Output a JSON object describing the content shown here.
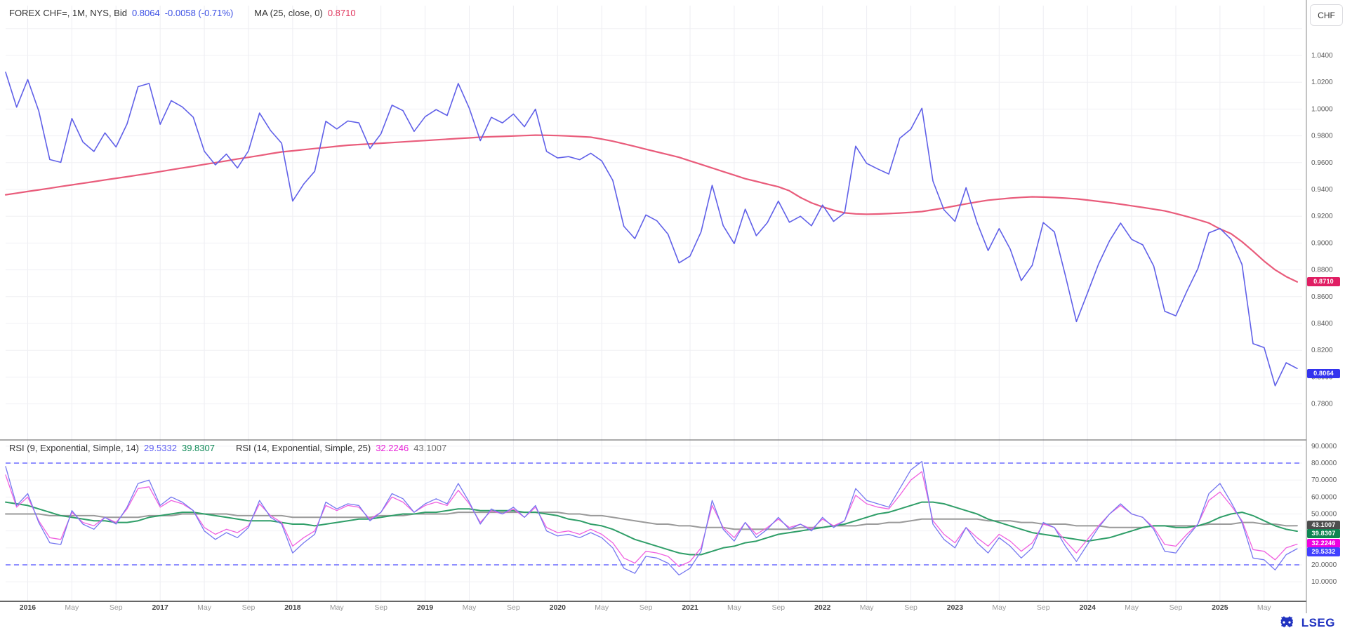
{
  "header": {
    "instrument": "FOREX CHF=, 1M, NYS, Bid",
    "last": "0.8064",
    "change": "-0.0058 (-0.71%)",
    "ma_label": "MA (25, close, 0)",
    "ma_value": "0.8710"
  },
  "axis_button": "CHF",
  "rsi_legend": {
    "label1": "RSI (9, Exponential, Simple, 14)",
    "value1a": "29.5332",
    "value1b": "39.8307",
    "label2": "RSI (14, Exponential, Simple, 25)",
    "value2a": "32.2246",
    "value2b": "43.1007"
  },
  "badges": {
    "price_ma": "0.8710",
    "price_last": "0.8064",
    "rsi_gray": "43.1007",
    "rsi_green": "39.8307",
    "rsi_magenta": "32.2246",
    "rsi_blue": "29.5332"
  },
  "logo_text": "LSEG",
  "chart_data": [
    {
      "type": "line",
      "panel": "price",
      "start_month": "2015-11",
      "freq": "monthly",
      "ylim": [
        0.77,
        1.06
      ],
      "grid": true,
      "y_tick_labels": [
        "1.0400",
        "1.0200",
        "1.0000",
        "0.9800",
        "0.9600",
        "0.9400",
        "0.9200",
        "0.9000",
        "0.8800",
        "0.8600",
        "0.8400",
        "0.8200",
        "0.8000",
        "0.7800"
      ],
      "x_tick_labels": [
        "2016",
        "May",
        "Sep",
        "2017",
        "May",
        "Sep",
        "2018",
        "May",
        "Sep",
        "2019",
        "May",
        "Sep",
        "2020",
        "May",
        "Sep",
        "2021",
        "May",
        "Sep",
        "2022",
        "May",
        "Sep",
        "2023",
        "May",
        "Sep",
        "2024",
        "May",
        "Sep",
        "2025",
        "May"
      ],
      "series": [
        {
          "name": "bid",
          "color": "#6060e8",
          "values": [
            1.0275,
            1.0014,
            1.022,
            0.9986,
            0.9623,
            0.9602,
            0.993,
            0.9754,
            0.9683,
            0.9822,
            0.9717,
            0.9889,
            1.0167,
            1.0191,
            0.9886,
            1.0063,
            1.0016,
            0.9939,
            0.9685,
            0.9583,
            0.9664,
            0.956,
            0.9688,
            0.997,
            0.984,
            0.9745,
            0.9313,
            0.944,
            0.9535,
            0.9909,
            0.9851,
            0.9911,
            0.9897,
            0.9706,
            0.9815,
            1.0029,
            0.9988,
            0.9833,
            0.9943,
            0.9996,
            0.9952,
            1.0191,
            1.0006,
            0.9764,
            0.9938,
            0.9897,
            0.9963,
            0.9868,
            0.9999,
            0.9684,
            0.9635,
            0.9645,
            0.9622,
            0.967,
            0.9613,
            0.9468,
            0.9125,
            0.9033,
            0.921,
            0.9166,
            0.9066,
            0.8852,
            0.8903,
            0.9084,
            0.9431,
            0.913,
            0.8996,
            0.9253,
            0.9055,
            0.9152,
            0.9313,
            0.9155,
            0.92,
            0.9129,
            0.9284,
            0.9162,
            0.9226,
            0.9723,
            0.9594,
            0.9553,
            0.9515,
            0.9782,
            0.985,
            1.0006,
            0.9463,
            0.9248,
            0.9162,
            0.9413,
            0.9152,
            0.8944,
            0.9108,
            0.8955,
            0.872,
            0.8834,
            0.9153,
            0.9083,
            0.8757,
            0.8414,
            0.8626,
            0.8843,
            0.9017,
            0.9149,
            0.9027,
            0.8987,
            0.8829,
            0.8491,
            0.8457,
            0.864,
            0.8809,
            0.9076,
            0.9109,
            0.9028,
            0.884,
            0.825,
            0.822,
            0.7935,
            0.8107,
            0.8064
          ]
        },
        {
          "name": "ma25",
          "color": "#e95c7b",
          "values": [
            0.936,
            0.9372,
            0.9385,
            0.9397,
            0.9409,
            0.9422,
            0.9434,
            0.9446,
            0.9458,
            0.9471,
            0.9483,
            0.9495,
            0.9508,
            0.952,
            0.9533,
            0.9547,
            0.956,
            0.9573,
            0.9587,
            0.96,
            0.9613,
            0.9627,
            0.964,
            0.9653,
            0.9667,
            0.968,
            0.9688,
            0.9697,
            0.9705,
            0.9713,
            0.9722,
            0.973,
            0.9735,
            0.974,
            0.9745,
            0.975,
            0.9755,
            0.976,
            0.9765,
            0.977,
            0.9775,
            0.978,
            0.9785,
            0.979,
            0.9793,
            0.9796,
            0.9799,
            0.9802,
            0.9805,
            0.9804,
            0.9802,
            0.9799,
            0.9795,
            0.979,
            0.9776,
            0.976,
            0.9741,
            0.9721,
            0.97,
            0.968,
            0.966,
            0.964,
            0.9613,
            0.9587,
            0.956,
            0.9533,
            0.9507,
            0.948,
            0.946,
            0.944,
            0.942,
            0.939,
            0.934,
            0.93,
            0.927,
            0.9245,
            0.9225,
            0.9218,
            0.9215,
            0.9217,
            0.922,
            0.9224,
            0.9229,
            0.9235,
            0.9248,
            0.9262,
            0.9277,
            0.9292,
            0.9307,
            0.932,
            0.9328,
            0.9335,
            0.9341,
            0.9345,
            0.9343,
            0.934,
            0.9335,
            0.933,
            0.9321,
            0.9311,
            0.9301,
            0.929,
            0.9278,
            0.9266,
            0.9253,
            0.924,
            0.922,
            0.9198,
            0.9175,
            0.915,
            0.9105,
            0.907,
            0.901,
            0.894,
            0.8865,
            0.88,
            0.875,
            0.871
          ]
        }
      ]
    },
    {
      "type": "line",
      "panel": "rsi",
      "start_month": "2015-11",
      "freq": "monthly",
      "ylim": [
        5,
        95
      ],
      "grid": true,
      "dashed_levels": [
        80,
        20
      ],
      "y_tick_labels": [
        "90.0000",
        "80.0000",
        "70.0000",
        "60.0000",
        "50.0000",
        "40.0000",
        "30.0000",
        "20.0000",
        "10.0000"
      ],
      "series": [
        {
          "name": "rsi14_ma25",
          "color": "#9a9a9a",
          "values": [
            50,
            50,
            50,
            50,
            49,
            49,
            49,
            49,
            49,
            48,
            48,
            48,
            48,
            49,
            49,
            49,
            50,
            50,
            50,
            50,
            50,
            49,
            49,
            49,
            49,
            49,
            48,
            48,
            48,
            48,
            48,
            48,
            48,
            48,
            49,
            49,
            49,
            50,
            50,
            50,
            50,
            51,
            51,
            51,
            51,
            51,
            51,
            51,
            51,
            51,
            51,
            50,
            50,
            49,
            49,
            48,
            47,
            46,
            45,
            44,
            44,
            43,
            43,
            42,
            42,
            42,
            41,
            41,
            41,
            41,
            41,
            41,
            42,
            42,
            42,
            43,
            43,
            43,
            44,
            44,
            45,
            45,
            46,
            47,
            47,
            47,
            47,
            47,
            47,
            46,
            46,
            46,
            45,
            45,
            44,
            44,
            44,
            43,
            43,
            43,
            42,
            42,
            42,
            42,
            43,
            43,
            43,
            43,
            43,
            44,
            44,
            44,
            45,
            45,
            44,
            44,
            43,
            43.1007
          ]
        },
        {
          "name": "rsi9_ma14",
          "color": "#2f9e68",
          "values": [
            57,
            56,
            55,
            53,
            51,
            49,
            48,
            47,
            46,
            46,
            45,
            45,
            46,
            48,
            49,
            50,
            51,
            51,
            50,
            49,
            48,
            47,
            46,
            46,
            46,
            45,
            44,
            44,
            43,
            44,
            45,
            46,
            47,
            47,
            48,
            49,
            50,
            50,
            51,
            51,
            52,
            53,
            53,
            52,
            52,
            52,
            52,
            51,
            51,
            50,
            49,
            47,
            46,
            44,
            43,
            41,
            38,
            35,
            33,
            31,
            29,
            27,
            26,
            26,
            28,
            30,
            31,
            33,
            34,
            36,
            38,
            39,
            40,
            41,
            42,
            43,
            44,
            46,
            48,
            50,
            51,
            53,
            55,
            57,
            57,
            56,
            54,
            52,
            50,
            47,
            45,
            43,
            41,
            39,
            38,
            37,
            36,
            35,
            34,
            35,
            36,
            38,
            40,
            42,
            43,
            43,
            42,
            42,
            43,
            45,
            48,
            50,
            51,
            49,
            46,
            43,
            41,
            39.8307
          ]
        },
        {
          "name": "rsi14",
          "color": "#f060e0",
          "values": [
            73,
            54,
            60,
            46,
            36,
            35,
            51,
            45,
            43,
            48,
            45,
            53,
            65,
            66,
            54,
            58,
            56,
            52,
            42,
            38,
            41,
            39,
            43,
            56,
            49,
            45,
            31,
            36,
            40,
            55,
            52,
            55,
            54,
            47,
            51,
            60,
            57,
            51,
            55,
            57,
            55,
            64,
            56,
            45,
            52,
            50,
            53,
            48,
            54,
            42,
            39,
            40,
            38,
            41,
            38,
            33,
            24,
            21,
            28,
            27,
            25,
            19,
            22,
            30,
            55,
            42,
            36,
            45,
            38,
            42,
            47,
            42,
            44,
            41,
            47,
            43,
            46,
            61,
            56,
            54,
            53,
            61,
            70,
            75,
            46,
            38,
            33,
            42,
            36,
            31,
            38,
            34,
            28,
            33,
            44,
            42,
            34,
            27,
            35,
            43,
            50,
            55,
            50,
            48,
            42,
            32,
            31,
            38,
            44,
            58,
            63,
            55,
            46,
            29,
            28,
            23,
            30,
            32.2246
          ]
        },
        {
          "name": "rsi9",
          "color": "#7678f0",
          "values": [
            78,
            55,
            62,
            45,
            33,
            32,
            52,
            44,
            41,
            48,
            44,
            54,
            68,
            70,
            55,
            60,
            57,
            52,
            40,
            35,
            39,
            36,
            42,
            58,
            48,
            44,
            27,
            33,
            38,
            57,
            53,
            56,
            55,
            46,
            51,
            62,
            59,
            51,
            56,
            59,
            56,
            68,
            57,
            44,
            53,
            50,
            54,
            48,
            55,
            40,
            37,
            38,
            36,
            39,
            36,
            30,
            18,
            15,
            25,
            24,
            21,
            14,
            18,
            28,
            58,
            41,
            34,
            45,
            36,
            41,
            48,
            41,
            44,
            40,
            48,
            42,
            46,
            65,
            58,
            56,
            54,
            65,
            76,
            81,
            44,
            35,
            30,
            42,
            33,
            27,
            36,
            31,
            24,
            30,
            45,
            42,
            31,
            22,
            32,
            42,
            50,
            56,
            50,
            48,
            41,
            28,
            27,
            36,
            44,
            62,
            68,
            57,
            45,
            24,
            23,
            17,
            26,
            29.5332
          ]
        }
      ]
    }
  ]
}
